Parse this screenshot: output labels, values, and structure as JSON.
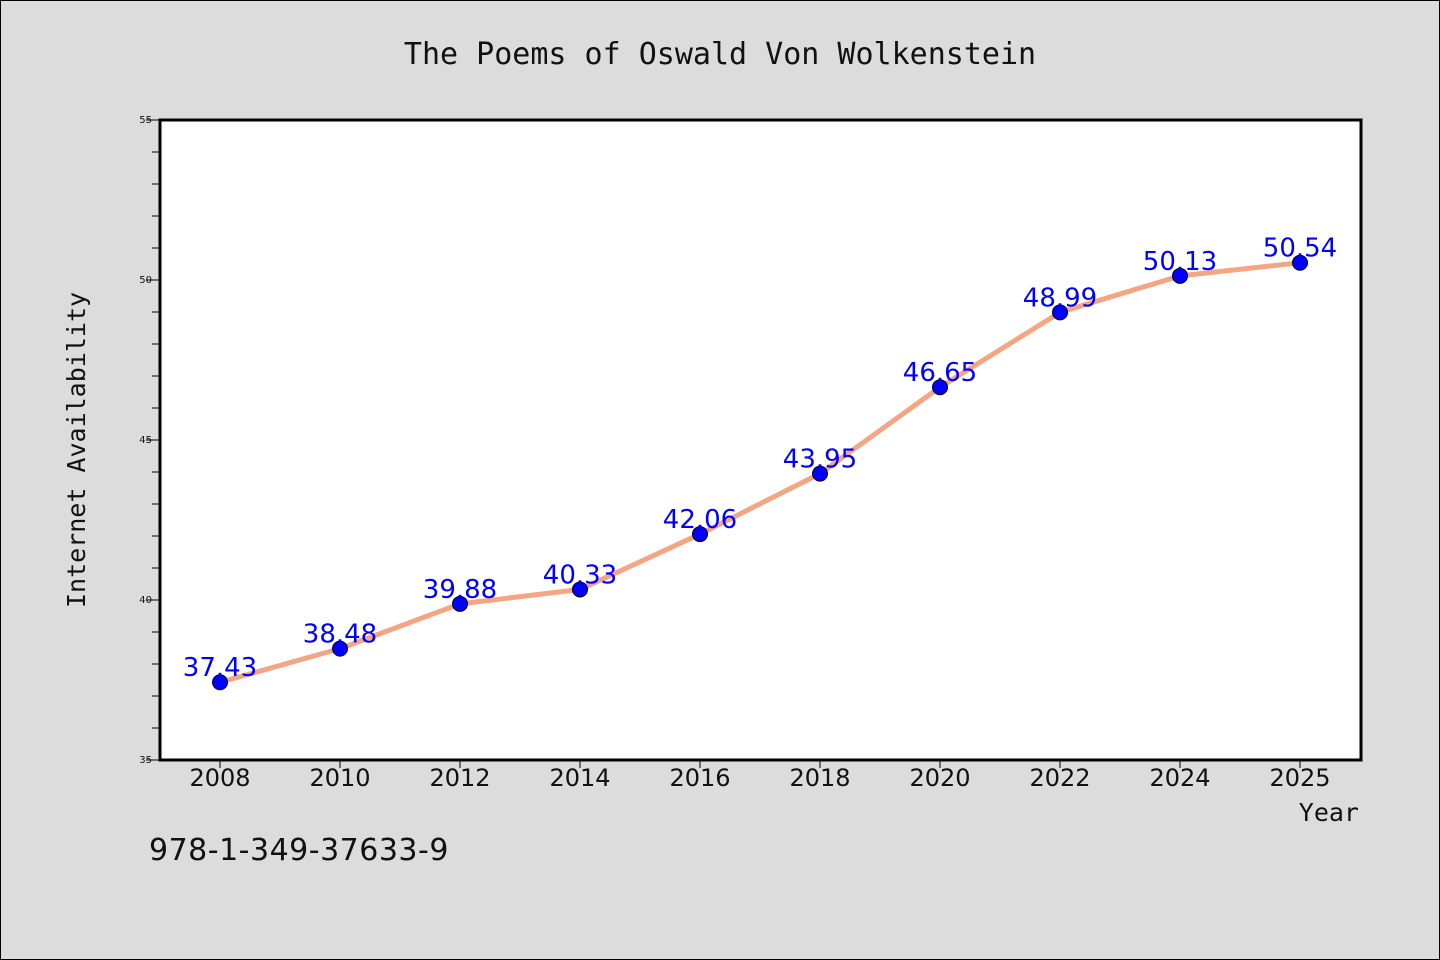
{
  "chart_data": {
    "type": "line",
    "title": "The Poems of Oswald Von Wolkenstein",
    "xlabel": "Year",
    "ylabel": "Internet Availability",
    "x": [
      "2008",
      "2010",
      "2012",
      "2014",
      "2016",
      "2018",
      "2020",
      "2022",
      "2024",
      "2025"
    ],
    "series": [
      {
        "values": [
          37.43,
          38.48,
          39.88,
          40.33,
          42.06,
          43.95,
          46.65,
          48.99,
          50.13,
          50.54
        ],
        "labels": [
          "37.43",
          "38.48",
          "39.88",
          "40.33",
          "42.06",
          "43.95",
          "46.65",
          "48.99",
          "50.13",
          "50.54"
        ]
      }
    ],
    "ylim": [
      35,
      55
    ],
    "yticks": [
      35,
      40,
      45,
      50,
      55
    ],
    "ytick_labels": [
      "35",
      "40",
      "45",
      "50",
      "55"
    ],
    "grid": false,
    "colors": {
      "line": "#f4a582",
      "marker": "#0000ff",
      "label": "#0000ff",
      "background": "#dcdcdc",
      "plot_area": "#ffffff"
    }
  },
  "footer": {
    "isbn": "978-1-349-37633-9"
  }
}
